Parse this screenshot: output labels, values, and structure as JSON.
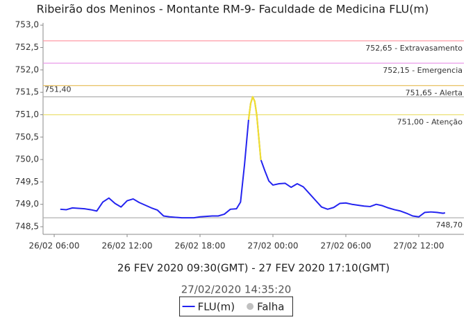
{
  "chart_data": {
    "type": "line",
    "title": "Ribeirão dos Meninos - Montante RM-9- Faculdade de Medicina FLU(m)",
    "subtitle": "26 FEV 2020 09:30(GMT) - 27 FEV 2020 17:10(GMT)",
    "timestamp": "27/02/2020 14:35:20",
    "x": [
      "2020-02-26T06:30",
      "2020-02-26T07:00",
      "2020-02-26T07:30",
      "2020-02-26T08:00",
      "2020-02-26T08:30",
      "2020-02-26T09:00",
      "2020-02-26T09:30",
      "2020-02-26T10:00",
      "2020-02-26T10:30",
      "2020-02-26T11:00",
      "2020-02-26T11:30",
      "2020-02-26T12:00",
      "2020-02-26T12:30",
      "2020-02-26T13:00",
      "2020-02-26T13:30",
      "2020-02-26T14:00",
      "2020-02-26T14:30",
      "2020-02-26T15:00",
      "2020-02-26T15:30",
      "2020-02-26T16:00",
      "2020-02-26T16:30",
      "2020-02-26T17:00",
      "2020-02-26T17:30",
      "2020-02-26T18:00",
      "2020-02-26T18:30",
      "2020-02-26T19:00",
      "2020-02-26T19:30",
      "2020-02-26T20:00",
      "2020-02-26T20:30",
      "2020-02-26T21:00",
      "2020-02-26T21:20",
      "2020-02-26T21:40",
      "2020-02-26T22:00",
      "2020-02-26T22:10",
      "2020-02-26T22:20",
      "2020-02-26T22:30",
      "2020-02-26T22:40",
      "2020-02-26T23:00",
      "2020-02-26T23:20",
      "2020-02-26T23:40",
      "2020-02-27T00:00",
      "2020-02-27T00:30",
      "2020-02-27T01:00",
      "2020-02-27T01:30",
      "2020-02-27T02:00",
      "2020-02-27T02:30",
      "2020-02-27T03:00",
      "2020-02-27T03:30",
      "2020-02-27T04:00",
      "2020-02-27T04:30",
      "2020-02-27T05:00",
      "2020-02-27T05:30",
      "2020-02-27T06:00",
      "2020-02-27T06:30",
      "2020-02-27T07:00",
      "2020-02-27T07:30",
      "2020-02-27T08:00",
      "2020-02-27T08:30",
      "2020-02-27T09:00",
      "2020-02-27T09:30",
      "2020-02-27T10:00",
      "2020-02-27T10:30",
      "2020-02-27T11:00",
      "2020-02-27T11:30",
      "2020-02-27T12:00",
      "2020-02-27T12:30",
      "2020-02-27T13:00",
      "2020-02-27T13:30",
      "2020-02-27T14:00",
      "2020-02-27T14:10"
    ],
    "series": [
      {
        "name": "FLU(m)",
        "color": "#2323f0",
        "values": [
          748.89,
          748.88,
          748.92,
          748.91,
          748.9,
          748.88,
          748.85,
          749.05,
          749.14,
          749.02,
          748.94,
          749.08,
          749.12,
          749.04,
          748.98,
          748.92,
          748.87,
          748.74,
          748.72,
          748.71,
          748.7,
          748.7,
          748.7,
          748.72,
          748.73,
          748.74,
          748.74,
          748.78,
          748.89,
          748.9,
          749.05,
          749.9,
          750.9,
          751.25,
          751.4,
          751.3,
          751.0,
          750.0,
          749.75,
          749.52,
          749.43,
          749.46,
          749.47,
          749.38,
          749.46,
          749.39,
          749.24,
          749.09,
          748.94,
          748.89,
          748.93,
          749.02,
          749.03,
          749.0,
          748.98,
          748.96,
          748.95,
          749.0,
          748.97,
          748.92,
          748.88,
          748.85,
          748.8,
          748.74,
          748.72,
          748.82,
          748.83,
          748.82,
          748.8,
          748.81
        ]
      }
    ],
    "legend_extra": {
      "name": "Falha",
      "color": "#c0c0c0"
    },
    "thresholds": [
      {
        "value": 752.65,
        "label": "752,65 - Extravasamento",
        "color": "#ff9aa6",
        "side": "right"
      },
      {
        "value": 752.15,
        "label": "752,15 - Emergencia",
        "color": "#e89ae8",
        "side": "right"
      },
      {
        "value": 751.65,
        "label": "751,65 - Alerta",
        "color": "#e8c060",
        "side": "right"
      },
      {
        "value": 751.4,
        "label": "751,40",
        "color": "#b0b0b0",
        "side": "left"
      },
      {
        "value": 751.0,
        "label": "751,00 - Atenção",
        "color": "#ece070",
        "side": "right",
        "highlight": true
      },
      {
        "value": 748.7,
        "label": "748,70",
        "color": "#b0b0b0",
        "side": "right"
      }
    ],
    "highlight_color": "#f2e030",
    "xlim": [
      "2020-02-26T05:05",
      "2020-02-27T15:43"
    ],
    "xticks": [
      {
        "value": "2020-02-26T06:00",
        "label": "26/02 06:00"
      },
      {
        "value": "2020-02-26T12:00",
        "label": "26/02 12:00"
      },
      {
        "value": "2020-02-26T18:00",
        "label": "26/02 18:00"
      },
      {
        "value": "2020-02-27T00:00",
        "label": "27/02 00:00"
      },
      {
        "value": "2020-02-27T06:00",
        "label": "27/02 06:00"
      },
      {
        "value": "2020-02-27T12:00",
        "label": "27/02 12:00"
      }
    ],
    "ylim": [
      748.33,
      753.05
    ],
    "yticks": [
      {
        "value": 748.5,
        "label": "748,5"
      },
      {
        "value": 749,
        "label": "749,0"
      },
      {
        "value": 749.5,
        "label": "749,5"
      },
      {
        "value": 750,
        "label": "750,0"
      },
      {
        "value": 750.5,
        "label": "750,5"
      },
      {
        "value": 751,
        "label": "751,0"
      },
      {
        "value": 751.5,
        "label": "751,5"
      },
      {
        "value": 752,
        "label": "752,0"
      },
      {
        "value": 752.5,
        "label": "752,5"
      },
      {
        "value": 753,
        "label": "753,0"
      }
    ]
  }
}
